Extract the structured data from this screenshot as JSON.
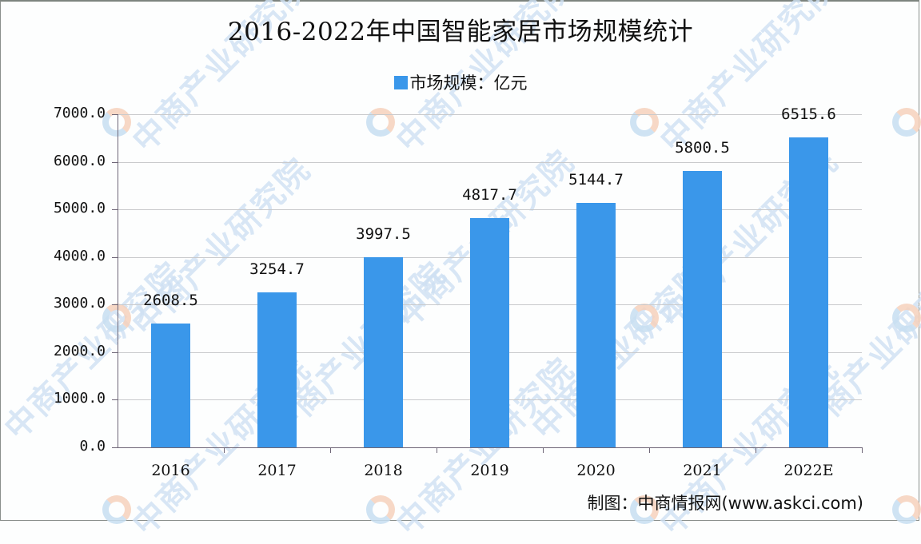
{
  "title": "2016-2022年中国智能家居市场规模统计",
  "legend": {
    "label": "市场规模：亿元",
    "color": "#3a97ea"
  },
  "source": "制图：中商情报网(www.askci.com)",
  "watermark": "中商产业研究院",
  "y_ticks": [
    "7000.0",
    "6000.0",
    "5000.0",
    "4000.0",
    "3000.0",
    "2000.0",
    "1000.0",
    "0.0"
  ],
  "chart_data": {
    "type": "bar",
    "title": "2016-2022年中国智能家居市场规模统计",
    "xlabel": "",
    "ylabel": "",
    "categories": [
      "2016",
      "2017",
      "2018",
      "2019",
      "2020",
      "2021",
      "2022E"
    ],
    "series": [
      {
        "name": "市场规模：亿元",
        "values": [
          2608.5,
          3254.7,
          3997.5,
          4817.7,
          5144.7,
          5800.5,
          6515.6
        ],
        "labels": [
          "2608.5",
          "3254.7",
          "3997.5",
          "4817.7",
          "5144.7",
          "5800.5",
          "6515.6"
        ]
      }
    ],
    "ylim": [
      0,
      7000
    ],
    "ytick_step": 1000,
    "grid": true,
    "legend_position": "top",
    "bar_color": "#3a97ea"
  }
}
